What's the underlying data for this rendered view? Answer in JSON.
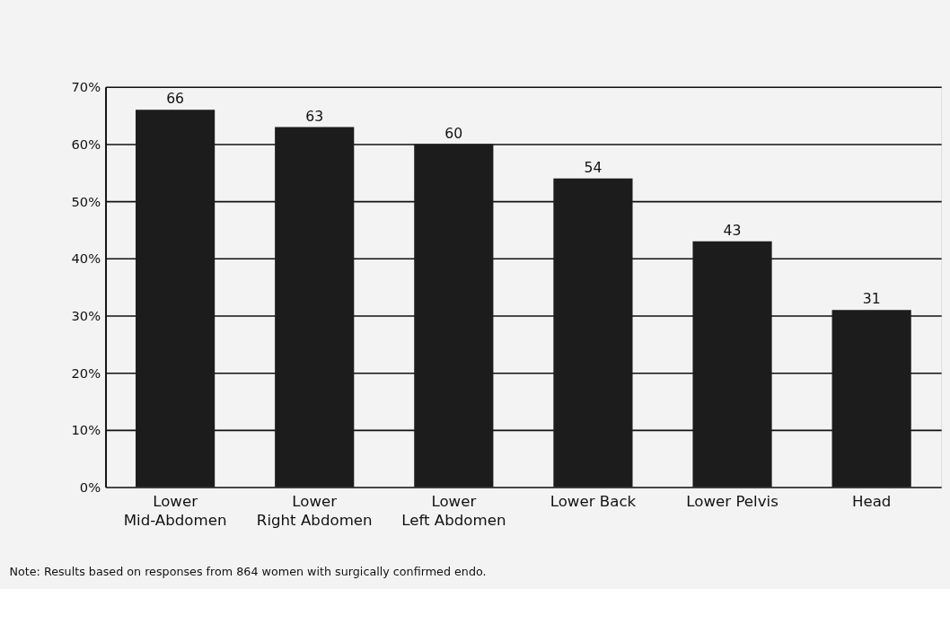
{
  "chart_data": {
    "type": "bar",
    "categories": [
      "Lower\nMid-Abdomen",
      "Lower\nRight Abdomen",
      "Lower\nLeft Abdomen",
      "Lower Back",
      "Lower Pelvis",
      "Head"
    ],
    "values": [
      66,
      63,
      60,
      54,
      43,
      31
    ],
    "color": "#1c1c1c",
    "ylim": [
      0,
      70
    ],
    "yticks": [
      {
        "value": 0,
        "label": "0%"
      },
      {
        "value": 10,
        "label": "10%"
      },
      {
        "value": 20,
        "label": "20%"
      },
      {
        "value": 30,
        "label": "30%"
      },
      {
        "value": 40,
        "label": "40%"
      },
      {
        "value": 50,
        "label": "50%"
      },
      {
        "value": 60,
        "label": "60%"
      },
      {
        "value": 70,
        "label": "70%"
      }
    ],
    "grid": "y",
    "data_labels": true,
    "annotations": [
      "Note: Results based on responses from 864 women with surgically confirmed endo."
    ]
  }
}
